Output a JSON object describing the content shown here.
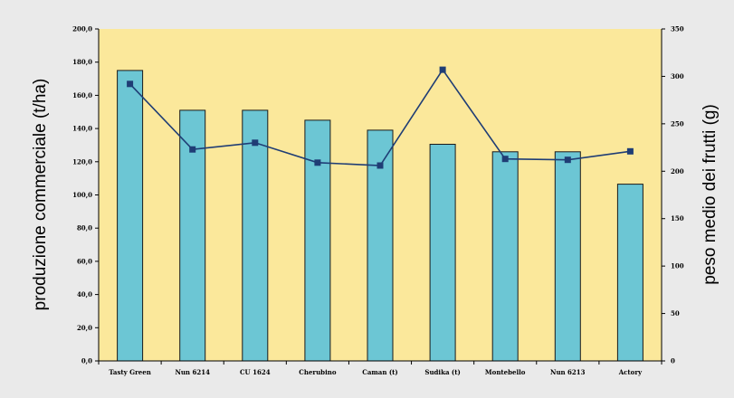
{
  "chart_data": {
    "type": "bar",
    "categories": [
      "Tasty Green",
      "Nun 6214",
      "CU 1624",
      "Cherubino",
      "Caman (t)",
      "Sudika (t)",
      "Montebello",
      "Nun 6213",
      "Actory"
    ],
    "series": [
      {
        "type": "bar",
        "axis": "left",
        "values": [
          175.0,
          151.0,
          151.0,
          145.0,
          139.0,
          130.5,
          126.0,
          126.0,
          106.5
        ]
      },
      {
        "type": "line",
        "axis": "right",
        "values": [
          292,
          223,
          230,
          209,
          206,
          307,
          213,
          212,
          221
        ]
      }
    ],
    "ylabel": "produzione commerciale (t/ha)",
    "y2label": "peso medio dei frutti (g)",
    "ylim": [
      0,
      200
    ],
    "y2lim": [
      0,
      350
    ],
    "yticks": [
      "0,0",
      "20,0",
      "40,0",
      "60,0",
      "80,0",
      "100,0",
      "120,0",
      "140,0",
      "160,0",
      "180,0",
      "200,0"
    ],
    "y2ticks": [
      "0",
      "50",
      "100",
      "150",
      "200",
      "250",
      "300",
      "350"
    ],
    "grid": false,
    "legend": "none",
    "colors": {
      "plot_bg": "#fbe89b",
      "bar": "#6cc6d4",
      "bar_stroke": "#1a1a1a",
      "line": "#1f3d75",
      "marker": "#1f3d75",
      "page_bg": "#eaeaea"
    }
  }
}
